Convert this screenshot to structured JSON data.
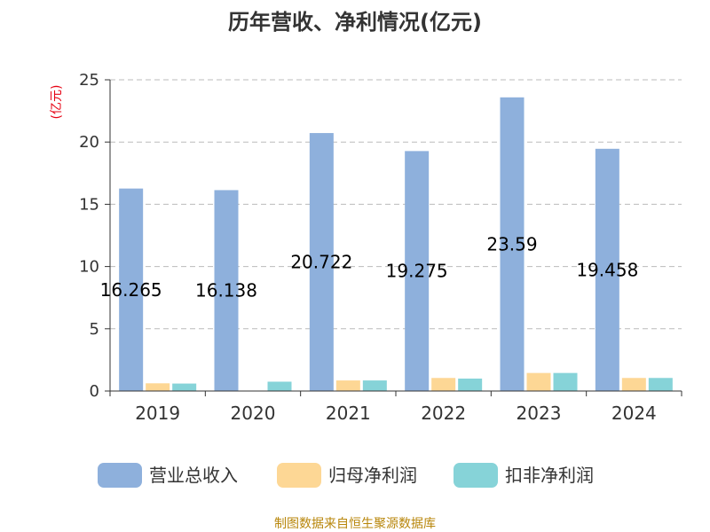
{
  "chart_data": {
    "type": "bar",
    "title": "历年营收、净利情况(亿元)",
    "unit_label": "(亿元)",
    "categories": [
      "2019",
      "2020",
      "2021",
      "2022",
      "2023",
      "2024"
    ],
    "series": [
      {
        "name": "营业总收入",
        "color": "#8eb0dc",
        "values": [
          16.265,
          16.138,
          20.722,
          19.275,
          23.59,
          19.458
        ]
      },
      {
        "name": "归母净利润",
        "color": "#fdd795",
        "values": [
          0.62,
          0.0,
          0.85,
          1.05,
          1.45,
          1.05
        ]
      },
      {
        "name": "扣非净利润",
        "color": "#86d3d8",
        "values": [
          0.6,
          0.75,
          0.85,
          1.0,
          1.45,
          1.05
        ]
      }
    ],
    "data_labels": [
      "16.265",
      "16.138",
      "20.722",
      "19.275",
      "23.59",
      "19.458"
    ],
    "ylim": [
      0,
      25
    ],
    "yticks": [
      0,
      5,
      10,
      15,
      20,
      25
    ],
    "grid": true,
    "legend_position": "bottom"
  },
  "source_text": "制图数据来自恒生聚源数据库"
}
